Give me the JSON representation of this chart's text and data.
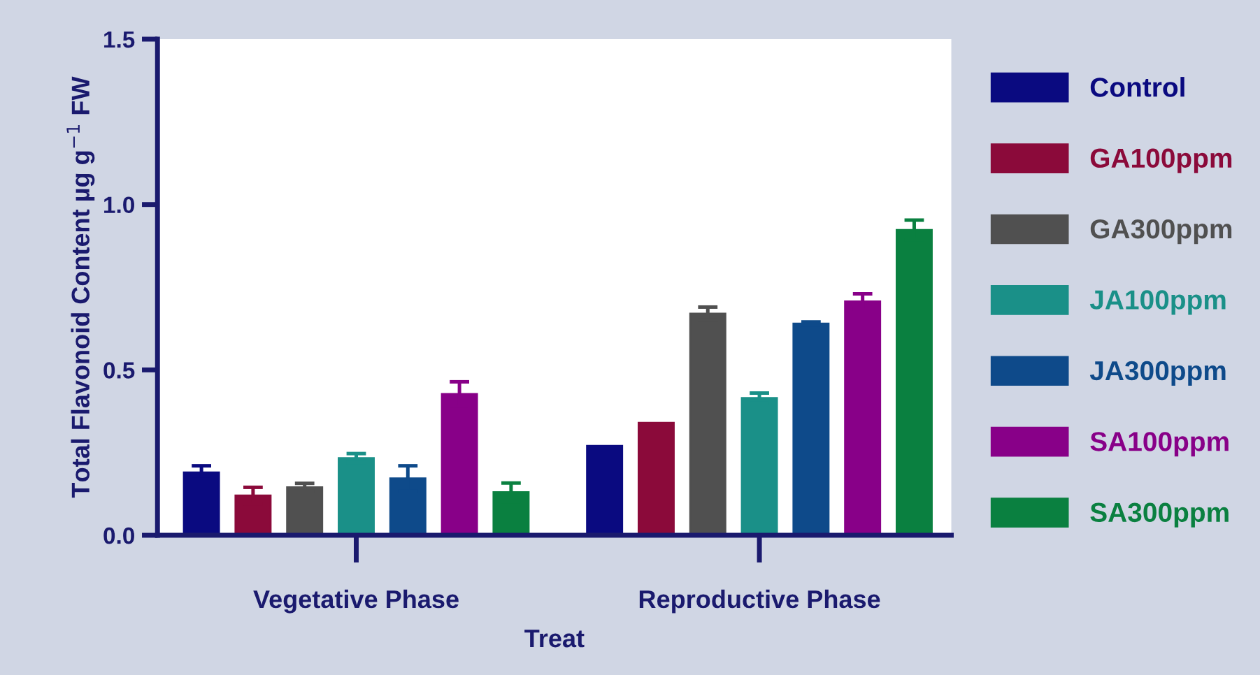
{
  "chart_data": {
    "type": "bar",
    "xlabel": "Treat",
    "ylabel": "Total Flavonoid Content µg g$^{−1}$ FW",
    "categories": [
      "Vegetative Phase",
      "Reproductive Phase"
    ],
    "series": [
      {
        "name": "Control",
        "color": "#0a0a80",
        "values": [
          0.19,
          0.27
        ],
        "errors": [
          0.02,
          null
        ]
      },
      {
        "name": "GA100ppm",
        "color": "#8b0a3a",
        "values": [
          0.12,
          0.34
        ],
        "errors": [
          0.025,
          null
        ]
      },
      {
        "name": "GA300ppm",
        "color": "#505050",
        "values": [
          0.145,
          0.67
        ],
        "errors": [
          0.012,
          0.02
        ]
      },
      {
        "name": "JA100ppm",
        "color": "#1a9088",
        "values": [
          0.233,
          0.415
        ],
        "errors": [
          0.014,
          0.015
        ]
      },
      {
        "name": "JA300ppm",
        "color": "#0e4a8a",
        "values": [
          0.172,
          0.64
        ],
        "errors": [
          0.038,
          0.005
        ]
      },
      {
        "name": "SA100ppm",
        "color": "#880088",
        "values": [
          0.427,
          0.707
        ],
        "errors": [
          0.037,
          0.023
        ]
      },
      {
        "name": "SA300ppm",
        "color": "#0a8040",
        "values": [
          0.13,
          0.923
        ],
        "errors": [
          0.028,
          0.03
        ]
      }
    ],
    "ylim": [
      0,
      1.5
    ],
    "yticks": [
      {
        "value": 0,
        "label": "0.0"
      },
      0.5,
      {
        "value": 1,
        "label": "1.0"
      },
      1.5
    ],
    "grid": false,
    "legend": "right"
  }
}
